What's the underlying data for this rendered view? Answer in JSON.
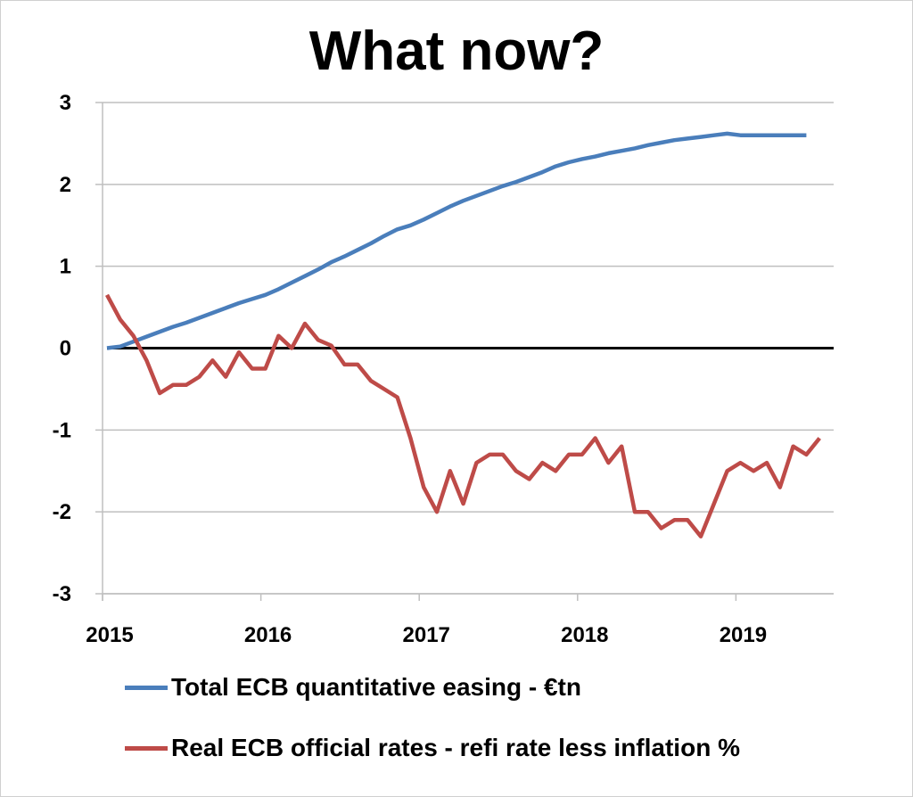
{
  "chart_data": {
    "type": "line",
    "title": "What now?",
    "xlabel": "",
    "ylabel": "",
    "ylim": [
      -3,
      3
    ],
    "yticks": [
      "3",
      "2",
      "1",
      "0",
      "-1",
      "-2",
      "-3"
    ],
    "xticks": [
      "2015",
      "2016",
      "2017",
      "2018",
      "2019"
    ],
    "grid": true,
    "legend": "bottom",
    "x_start": "2015-01",
    "x_step": "month",
    "series": [
      {
        "name": "Total ECB quantitative easing -  €tn",
        "color": "#4a7ebb",
        "values": [
          0,
          0.02,
          0.08,
          0.14,
          0.2,
          0.26,
          0.31,
          0.37,
          0.43,
          0.49,
          0.55,
          0.6,
          0.65,
          0.72,
          0.8,
          0.88,
          0.96,
          1.05,
          1.12,
          1.2,
          1.28,
          1.37,
          1.45,
          1.5,
          1.57,
          1.65,
          1.73,
          1.8,
          1.86,
          1.92,
          1.98,
          2.03,
          2.09,
          2.15,
          2.22,
          2.27,
          2.31,
          2.34,
          2.38,
          2.41,
          2.44,
          2.48,
          2.51,
          2.54,
          2.56,
          2.58,
          2.6,
          2.62,
          2.6,
          2.6,
          2.6,
          2.6,
          2.6,
          2.6
        ]
      },
      {
        "name": "Real ECB official rates - refi rate less inflation %",
        "color": "#be4b48",
        "values": [
          0.65,
          0.35,
          0.15,
          -0.15,
          -0.55,
          -0.45,
          -0.45,
          -0.35,
          -0.15,
          -0.35,
          -0.05,
          -0.25,
          -0.25,
          0.15,
          0.0,
          0.3,
          0.1,
          0.03,
          -0.2,
          -0.2,
          -0.4,
          -0.5,
          -0.6,
          -1.1,
          -1.7,
          -2.0,
          -1.5,
          -1.9,
          -1.4,
          -1.3,
          -1.3,
          -1.5,
          -1.6,
          -1.4,
          -1.5,
          -1.3,
          -1.3,
          -1.1,
          -1.4,
          -1.2,
          -2.0,
          -2.0,
          -2.2,
          -2.1,
          -2.1,
          -2.3,
          -1.9,
          -1.5,
          -1.4,
          -1.5,
          -1.4,
          -1.7,
          -1.2,
          -1.3,
          -1.1
        ]
      }
    ]
  }
}
